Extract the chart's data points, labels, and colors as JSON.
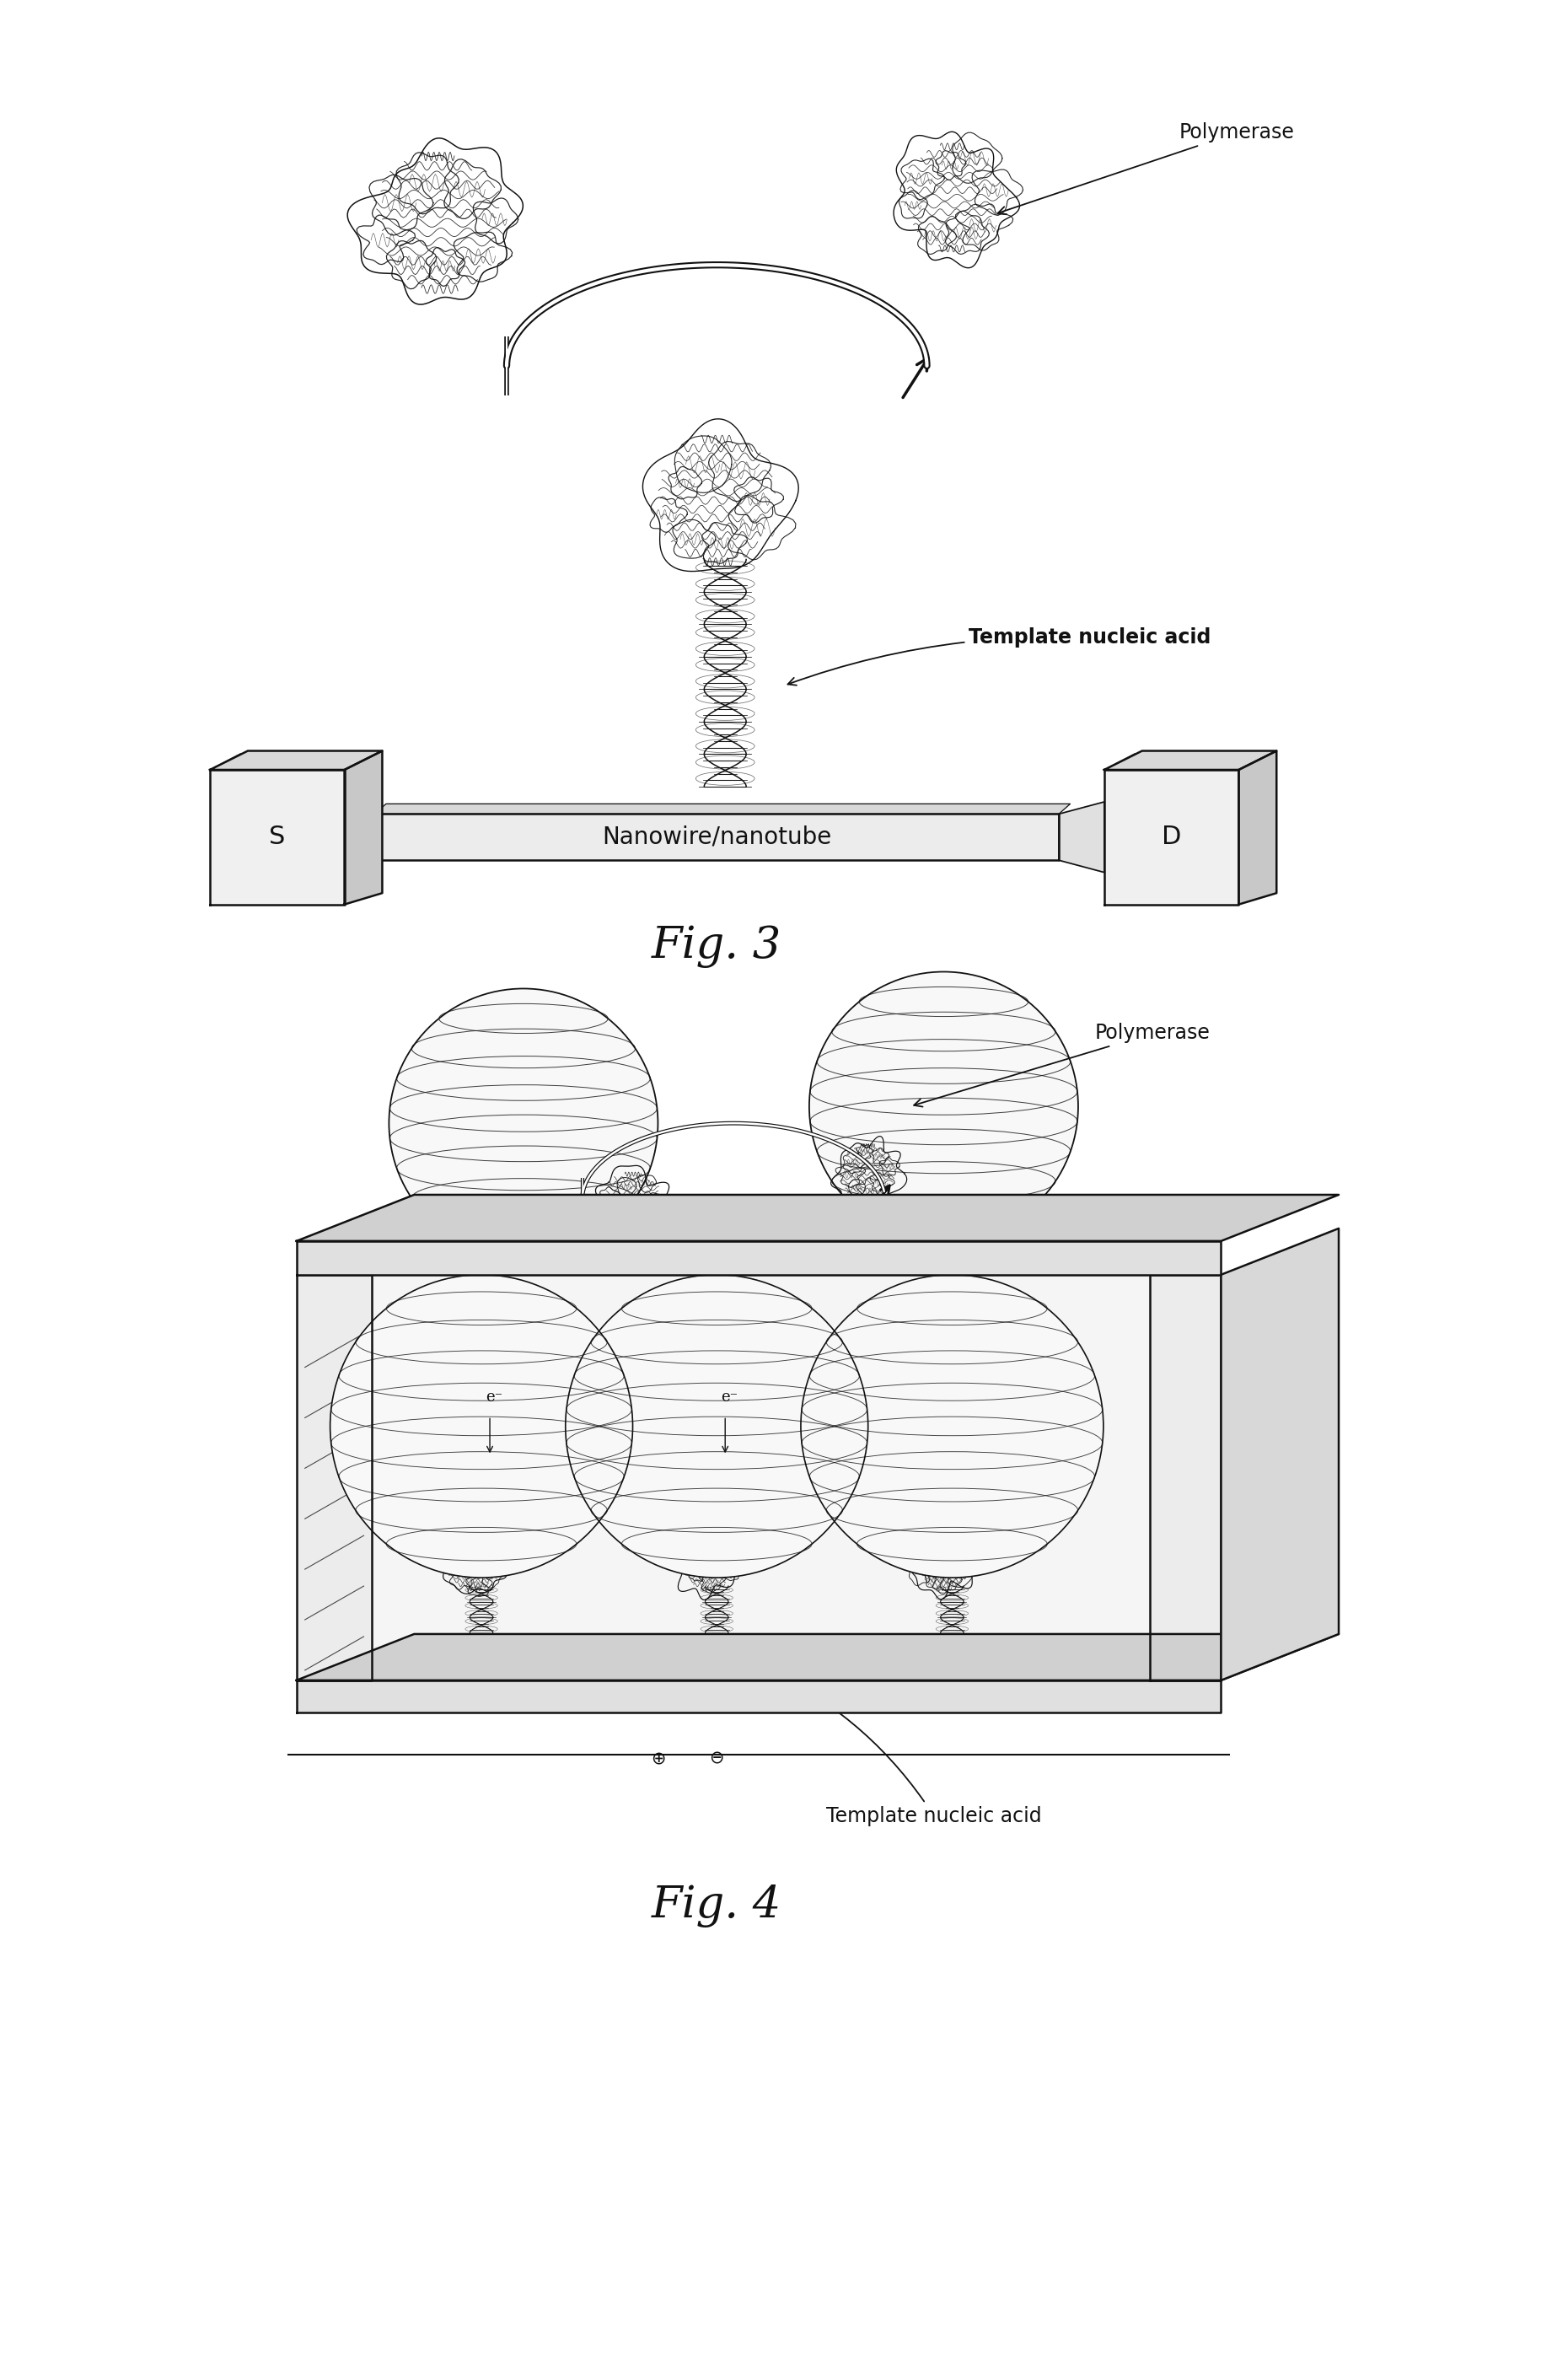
{
  "background_color": "#ffffff",
  "fig3_label": "Fig. 3",
  "fig4_label": "Fig. 4",
  "label_polymerase_1": "Polymerase",
  "label_template_1": "Template nucleic acid",
  "label_nanowire": "Nanowire/nanotube",
  "label_S": "S",
  "label_D": "D",
  "label_polymerase_2": "Polymerase",
  "label_template_2": "Template nucleic acid",
  "label_e1": "e⁻",
  "label_e2": "e⁻",
  "label_plus": "⊕",
  "label_minus": "⊖",
  "line_color": "#111111"
}
